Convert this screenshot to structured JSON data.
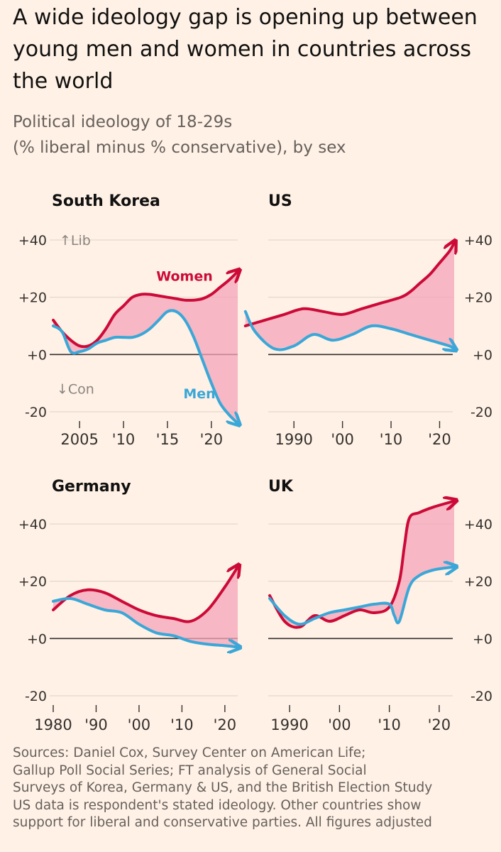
{
  "header": {
    "title": "A wide ideology gap is opening up between young men and women in countries across the world",
    "subtitle_line1": "Political ideology of 18-29s",
    "subtitle_line2": "(% liberal minus % conservative), by sex"
  },
  "chart_data": [
    {
      "type": "line",
      "title": "South Korea",
      "ylim": [
        -20,
        40
      ],
      "y_ticks": [
        -20,
        0,
        20,
        40
      ],
      "y_tick_labels": [
        "-20",
        "+0",
        "+20",
        "+40"
      ],
      "xlim": [
        2002,
        2023
      ],
      "x_ticks": [
        2005,
        2010,
        2015,
        2020
      ],
      "x_tick_labels": [
        "2005",
        "'10",
        "'15",
        "'20"
      ],
      "annotations": {
        "lib": "↑Lib",
        "con": "↓Con",
        "women": "Women",
        "men": "Men"
      },
      "series": [
        {
          "name": "Women",
          "color": "#cc0a38",
          "x": [
            2002,
            2003,
            2004,
            2005,
            2006,
            2007,
            2008,
            2009,
            2010,
            2011,
            2012,
            2013,
            2014,
            2015,
            2016,
            2017,
            2018,
            2019,
            2020,
            2021,
            2022,
            2023
          ],
          "y": [
            12,
            8,
            5,
            3,
            3,
            5,
            9,
            14,
            17,
            20,
            21,
            21,
            20.5,
            20,
            19.5,
            19,
            19,
            19.5,
            21,
            23.5,
            26,
            29
          ]
        },
        {
          "name": "Men",
          "color": "#3aa7d8",
          "x": [
            2002,
            2003,
            2004,
            2005,
            2006,
            2007,
            2008,
            2009,
            2010,
            2011,
            2012,
            2013,
            2014,
            2015,
            2016,
            2017,
            2018,
            2019,
            2020,
            2021,
            2022,
            2023
          ],
          "y": [
            10,
            8,
            1,
            1,
            2,
            4,
            5,
            6,
            6,
            6,
            7,
            9,
            12,
            15,
            15,
            12,
            6,
            -2,
            -10,
            -17,
            -21,
            -24
          ]
        }
      ]
    },
    {
      "type": "line",
      "title": "US",
      "ylim": [
        -20,
        40
      ],
      "y_ticks": [
        -20,
        0,
        20,
        40
      ],
      "y_tick_labels": [
        "-20",
        "+0",
        "+20",
        "+40"
      ],
      "xlim": [
        1980,
        2023
      ],
      "x_ticks": [
        1990,
        2000,
        2010,
        2020
      ],
      "x_tick_labels": [
        "1990",
        "'00",
        "'10",
        "'20"
      ],
      "series": [
        {
          "name": "Women",
          "color": "#cc0a38",
          "x": [
            1980,
            1984,
            1988,
            1992,
            1996,
            2000,
            2004,
            2008,
            2012,
            2014,
            2016,
            2018,
            2020,
            2022,
            2023
          ],
          "y": [
            10,
            12,
            14,
            16,
            15,
            14,
            16,
            18,
            20,
            22,
            25,
            28,
            32,
            36,
            39
          ]
        },
        {
          "name": "Men",
          "color": "#3aa7d8",
          "x": [
            1980,
            1982,
            1986,
            1990,
            1994,
            1998,
            2002,
            2006,
            2010,
            2014,
            2018,
            2022,
            2023
          ],
          "y": [
            15,
            8,
            2,
            3,
            7,
            5,
            7,
            10,
            9,
            7,
            5,
            3,
            2
          ]
        }
      ]
    },
    {
      "type": "line",
      "title": "Germany",
      "ylim": [
        -20,
        40
      ],
      "y_ticks": [
        -20,
        0,
        20,
        40
      ],
      "y_tick_labels": [
        "-20",
        "+0",
        "+20",
        "+40"
      ],
      "xlim": [
        1980,
        2023
      ],
      "x_ticks": [
        1980,
        1990,
        2000,
        2010,
        2020
      ],
      "x_tick_labels": [
        "1980",
        "'90",
        "'00",
        "'10",
        "'20"
      ],
      "series": [
        {
          "name": "Women",
          "color": "#cc0a38",
          "x": [
            1980,
            1984,
            1988,
            1992,
            1996,
            2000,
            2004,
            2008,
            2012,
            2016,
            2020,
            2023
          ],
          "y": [
            10,
            15,
            17,
            16,
            13,
            10,
            8,
            7,
            6,
            10,
            18,
            25
          ]
        },
        {
          "name": "Men",
          "color": "#3aa7d8",
          "x": [
            1980,
            1984,
            1988,
            1992,
            1996,
            2000,
            2004,
            2008,
            2012,
            2016,
            2020,
            2023
          ],
          "y": [
            13,
            14,
            12,
            10,
            9,
            5,
            2,
            1,
            -1,
            -2,
            -2.5,
            -3
          ]
        }
      ]
    },
    {
      "type": "line",
      "title": "UK",
      "ylim": [
        -20,
        40
      ],
      "y_ticks": [
        -20,
        0,
        20,
        40
      ],
      "y_tick_labels": [
        "-20",
        "+0",
        "+20",
        "+40"
      ],
      "xlim": [
        1986,
        2023
      ],
      "x_ticks": [
        1990,
        2000,
        2010,
        2020
      ],
      "x_tick_labels": [
        "1990",
        "'00",
        "'10",
        "'20"
      ],
      "series": [
        {
          "name": "Women",
          "color": "#cc0a38",
          "x": [
            1986,
            1989,
            1992,
            1995,
            1998,
            2001,
            2004,
            2007,
            2010,
            2012,
            2013,
            2014,
            2016,
            2019,
            2023
          ],
          "y": [
            15,
            6,
            4,
            8,
            6,
            8,
            10,
            9,
            11,
            20,
            32,
            42,
            44,
            46,
            48
          ]
        },
        {
          "name": "Men",
          "color": "#3aa7d8",
          "x": [
            1986,
            1989,
            1992,
            1995,
            1998,
            2001,
            2004,
            2007,
            2010,
            2011,
            2012,
            2014,
            2016,
            2019,
            2023
          ],
          "y": [
            14,
            8,
            5,
            7,
            9,
            10,
            11,
            12,
            12,
            8,
            6,
            18,
            22,
            24,
            25
          ]
        }
      ]
    }
  ],
  "sources": {
    "line1": "Sources: Daniel Cox, Survey Center on American Life;",
    "line2": "Gallup Poll Social Series; FT analysis of General Social",
    "line3": "Surveys of Korea, Germany & US, and the British Election Study",
    "line4": "US data is respondent's stated ideology. Other countries show",
    "line5": "support for liberal and conservative parties. All figures adjusted"
  },
  "colors": {
    "women": "#cc0a38",
    "men": "#3aa7d8",
    "gap_fill": "#f4a3b8",
    "background": "#fff1e5"
  }
}
